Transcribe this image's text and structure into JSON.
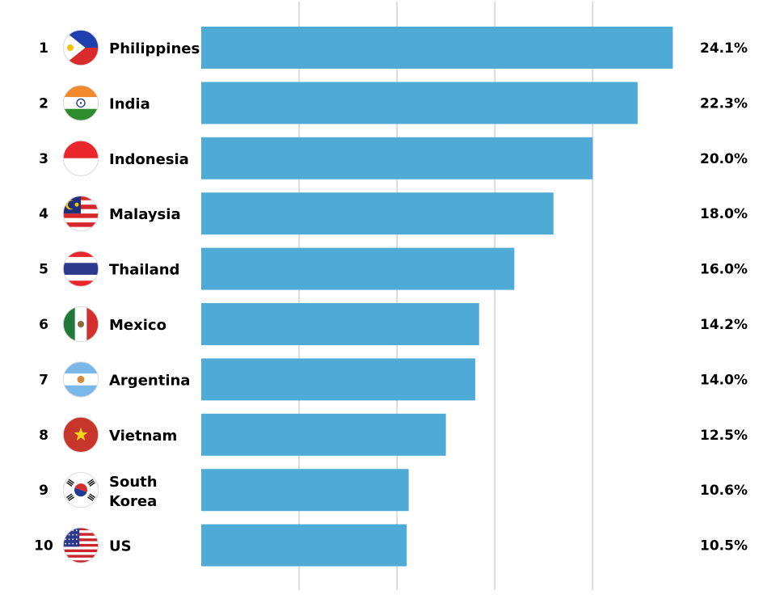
{
  "chart_data": {
    "type": "bar",
    "orientation": "horizontal",
    "categories": [
      "Philippines",
      "India",
      "Indonesia",
      "Malaysia",
      "Thailand",
      "Mexico",
      "Argentina",
      "Vietnam",
      "South Korea",
      "US"
    ],
    "ranks": [
      "1",
      "2",
      "3",
      "4",
      "5",
      "6",
      "7",
      "8",
      "9",
      "10"
    ],
    "values": [
      24.1,
      22.3,
      20.0,
      18.0,
      16.0,
      14.2,
      14.0,
      12.5,
      10.6,
      10.5
    ],
    "value_labels": [
      "24.1%",
      "22.3%",
      "20.0%",
      "18.0%",
      "16.0%",
      "14.2%",
      "14.0%",
      "12.5%",
      "10.6%",
      "10.5%"
    ],
    "flag_icons": [
      "philippines-flag-icon",
      "india-flag-icon",
      "indonesia-flag-icon",
      "malaysia-flag-icon",
      "thailand-flag-icon",
      "mexico-flag-icon",
      "argentina-flag-icon",
      "vietnam-flag-icon",
      "south-korea-flag-icon",
      "us-flag-icon"
    ],
    "bar_color": "#4fabd6",
    "grid": true,
    "xlim": [
      0,
      25
    ],
    "title": "",
    "xlabel": "",
    "ylabel": ""
  }
}
